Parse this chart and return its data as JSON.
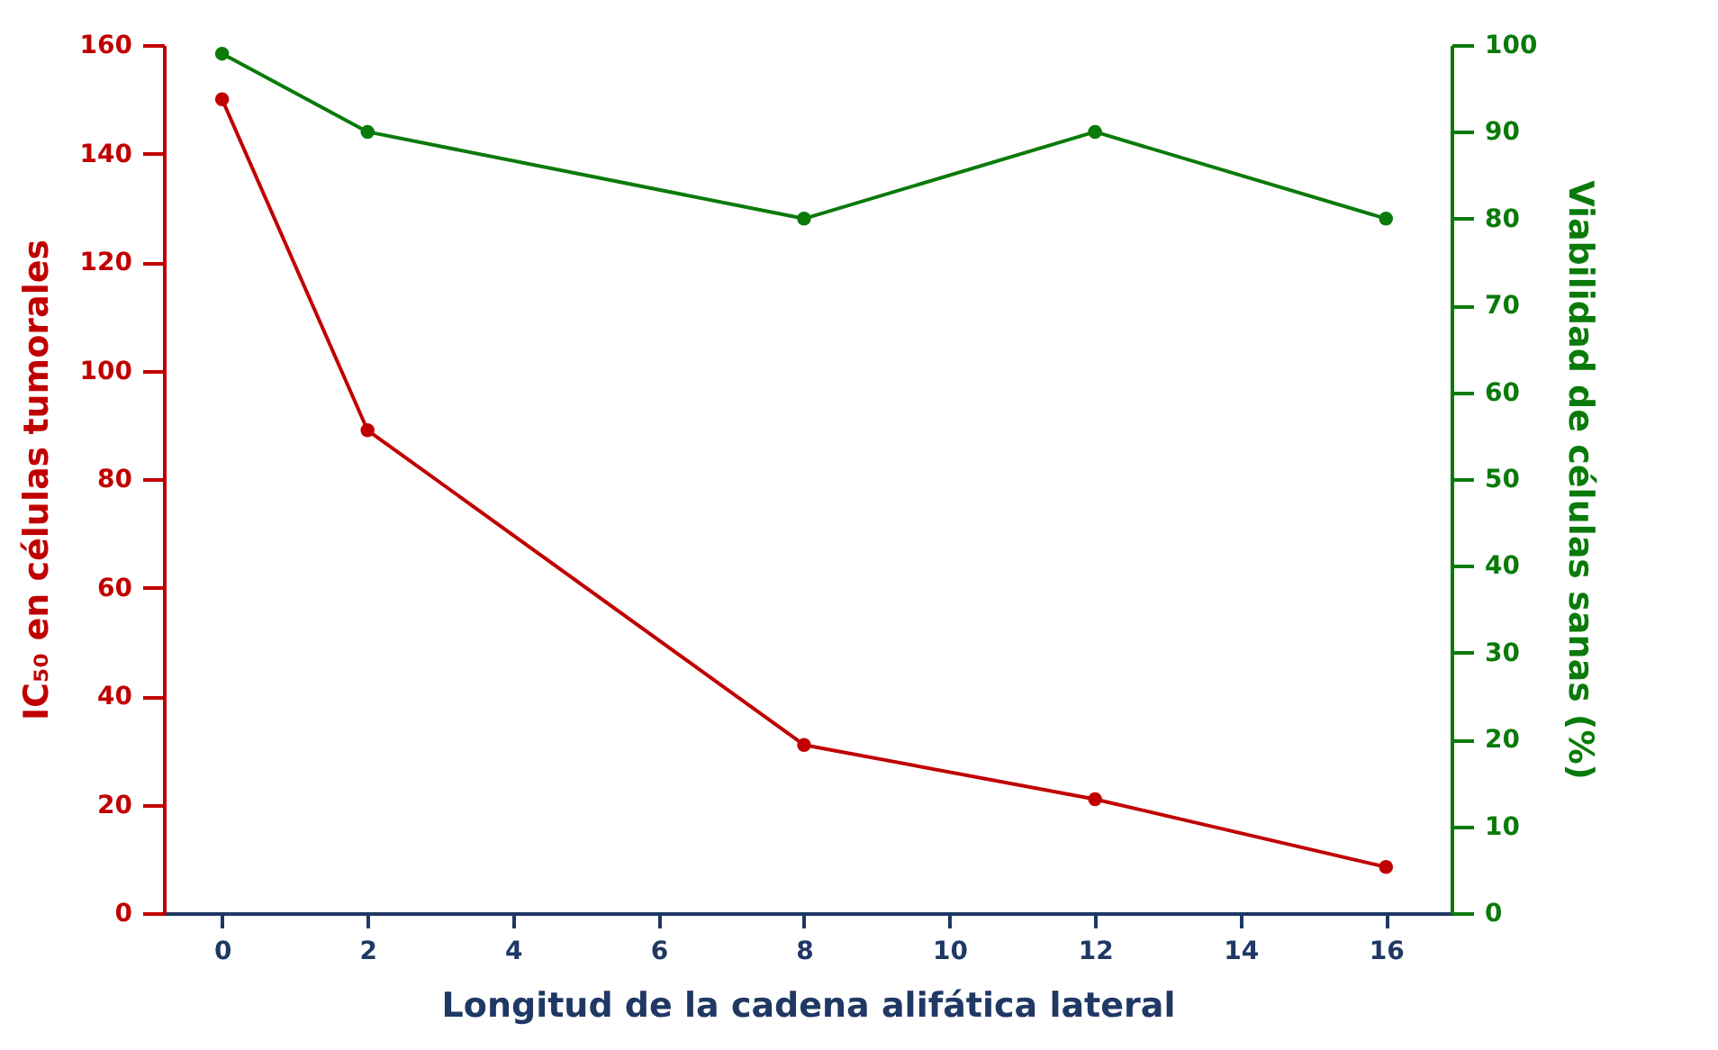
{
  "chart_data": {
    "type": "line",
    "xlabel": "Longitud de la cadena alifática lateral",
    "ylabel": "IC₅₀ en células tumorales",
    "y2label": "Viabilidad de células sanas (%)",
    "x": [
      0,
      2,
      8,
      12,
      16
    ],
    "xlim": [
      -0.8,
      16.9
    ],
    "xticks": [
      0,
      2,
      4,
      6,
      8,
      10,
      12,
      14,
      16
    ],
    "ylim": [
      0,
      160
    ],
    "yticks": [
      0,
      20,
      40,
      60,
      80,
      100,
      120,
      140,
      160
    ],
    "y2lim": [
      0,
      100
    ],
    "y2ticks": [
      0,
      10,
      20,
      30,
      40,
      50,
      60,
      70,
      80,
      90,
      100
    ],
    "series": [
      {
        "color": "#c00000",
        "values": [
          150,
          89,
          31,
          21,
          8.5
        ]
      },
      {
        "color": "#0a7a0a",
        "values": [
          99,
          90,
          80,
          90,
          80
        ],
        "axis": "y2"
      }
    ],
    "marker": "circle",
    "line_style": "solid",
    "grid": false
  }
}
